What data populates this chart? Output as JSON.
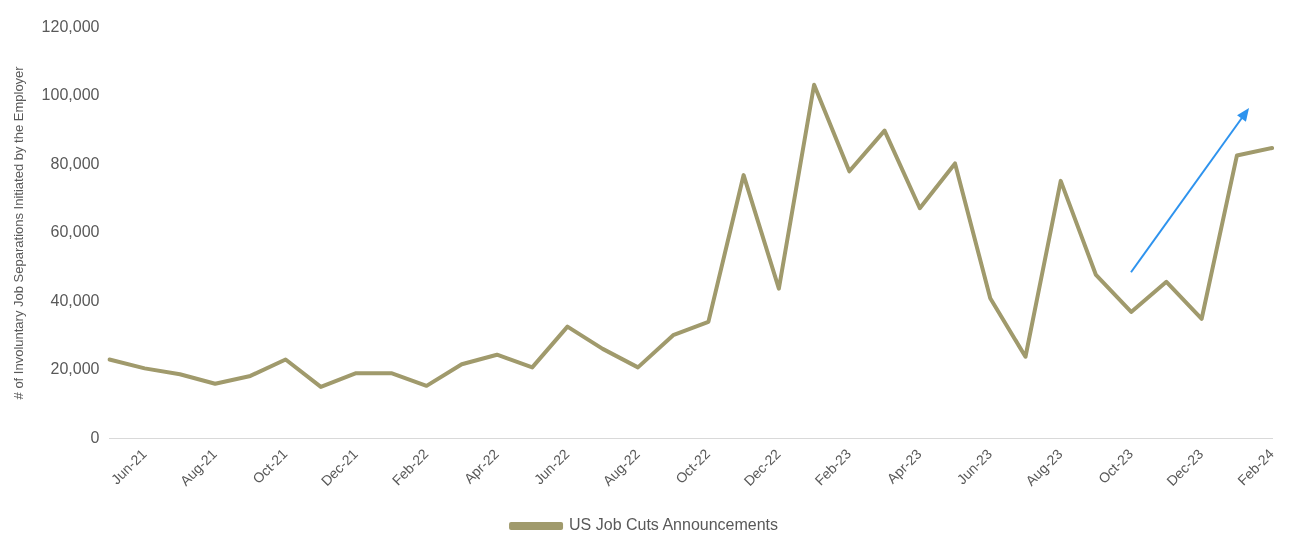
{
  "chart_data": {
    "type": "line",
    "ylabel": "# of Involuntary Job Separations Initiated by the Employer",
    "categories": [
      null,
      "Jun-21",
      null,
      "Aug-21",
      null,
      "Oct-21",
      null,
      "Dec-21",
      null,
      "Feb-22",
      null,
      "Apr-22",
      null,
      "Jun-22",
      null,
      "Aug-22",
      null,
      "Oct-22",
      null,
      "Dec-22",
      null,
      "Feb-23",
      null,
      "Apr-23",
      null,
      "Jun-23",
      null,
      "Aug-23",
      null,
      "Oct-23",
      null,
      "Dec-23",
      null,
      "Feb-24"
    ],
    "series": [
      {
        "name": "US Job Cuts Announcements",
        "color": "#a09a6c",
        "values": [
          23000,
          20400,
          18700,
          15900,
          18200,
          23000,
          15000,
          19000,
          19000,
          15300,
          21600,
          24400,
          20700,
          32600,
          26100,
          20700,
          30100,
          34000,
          76900,
          43700,
          103300,
          78000,
          89900,
          67200,
          80300,
          40900,
          23800,
          75200,
          47700,
          36900,
          45700,
          34900,
          82600,
          84800
        ]
      }
    ],
    "ylim": [
      0,
      120000
    ],
    "yticks": [
      0,
      {
        "value": 20000,
        "label": "20,000"
      },
      {
        "value": 40000,
        "label": "40,000"
      },
      {
        "value": 60000,
        "label": "60,000"
      },
      {
        "value": 80000,
        "label": "80,000"
      },
      {
        "value": 100000,
        "label": "100,000"
      },
      {
        "value": 120000,
        "label": "120,000"
      }
    ],
    "grid": false,
    "legend": "bottom",
    "marker": "none",
    "line_style": "solid"
  }
}
